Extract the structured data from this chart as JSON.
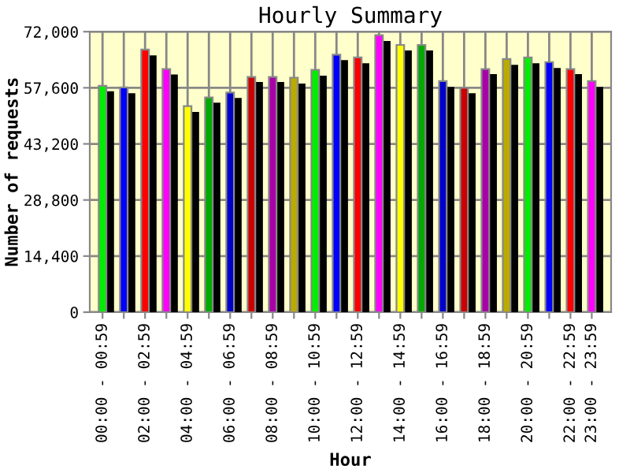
{
  "chart_data": {
    "type": "bar",
    "title": "Hourly Summary",
    "xlabel": "Hour",
    "ylabel": "Number of requests",
    "categories": [
      "00:00 - 00:59",
      null,
      "02:00 - 02:59",
      null,
      "04:00 - 04:59",
      null,
      "06:00 - 06:59",
      null,
      "08:00 - 08:59",
      null,
      "10:00 - 10:59",
      null,
      "12:00 - 12:59",
      null,
      "14:00 - 14:59",
      null,
      "16:00 - 16:59",
      null,
      "18:00 - 18:59",
      null,
      "20:00 - 20:59",
      null,
      "22:00 - 22:59",
      "23:00 - 23:59"
    ],
    "series": [
      {
        "colors": [
          "#00ee00",
          "#0000ff",
          "#ff0000",
          "#ff00ff",
          "#ffff00",
          "#00aa00",
          "#0000cc",
          "#cc0000",
          "#aa00aa",
          "#bbaa00",
          "#00ee00",
          "#0000ff",
          "#ff0000",
          "#ff00ff",
          "#ffff00",
          "#00aa00",
          "#0000cc",
          "#cc0000",
          "#aa00aa",
          "#bbaa00",
          "#00ee00",
          "#0000ff",
          "#ff0000",
          "#ff00ff"
        ],
        "values": [
          58100,
          57700,
          67400,
          62400,
          52900,
          55100,
          56400,
          60400,
          60400,
          60200,
          62200,
          66100,
          65400,
          71100,
          68600,
          68600,
          59300,
          57600,
          62400,
          65000,
          65400,
          64200,
          62400,
          59300
        ]
      },
      {
        "color": "#000000",
        "values": [
          56700,
          56200,
          65900,
          61000,
          51400,
          53800,
          55000,
          59100,
          59100,
          58700,
          60700,
          64700,
          63900,
          69600,
          67200,
          67200,
          57800,
          56200,
          61100,
          63500,
          63900,
          62700,
          61100,
          57800
        ]
      }
    ],
    "ylim": [
      0,
      72000
    ],
    "yticks": [
      0,
      {
        "value": 14400,
        "label": "14,400"
      },
      {
        "value": 28800,
        "label": "28,800"
      },
      {
        "value": 43200,
        "label": "43,200"
      },
      {
        "value": 57600,
        "label": "57,600"
      },
      {
        "value": 72000,
        "label": "72,000"
      }
    ],
    "grid": true
  }
}
